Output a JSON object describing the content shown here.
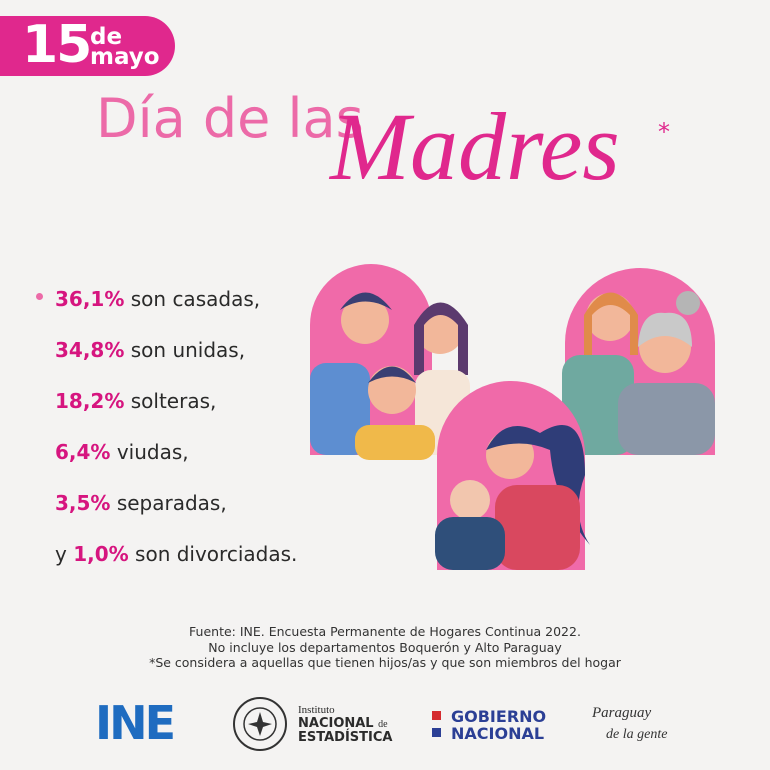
{
  "badge": {
    "day": "15",
    "month_line1": "de",
    "month_line2": "mayo"
  },
  "title": {
    "line1": "Día de las",
    "script": "Madres",
    "asterisk": "*"
  },
  "items": [
    {
      "value": "36,1%",
      "text": "son casadas,"
    },
    {
      "value": "34,8%",
      "text": "son unidas,"
    },
    {
      "value": "18,2%",
      "text": "solteras,"
    },
    {
      "value": "6,4%",
      "text": "viudas,"
    },
    {
      "value": "3,5%",
      "text": "separadas,"
    },
    {
      "prefix": "y",
      "value": "1,0%",
      "text": "son divorciadas."
    }
  ],
  "notes": [
    "Fuente: INE. Encuesta Permanente de Hogares Continua 2022.",
    "No incluye los departamentos Boquerón y Alto Paraguay",
    "*Se considera a aquellas que tienen hijos/as y que son miembros del hogar"
  ],
  "logos": {
    "ine": "INE",
    "instituto": {
      "line1": "Instituto",
      "line2": "NACIONAL",
      "de": "de",
      "line3": "ESTADÍSTICA"
    },
    "gobierno": {
      "line1": "GOBIERNO",
      "line2": "NACIONAL"
    },
    "paraguay": {
      "line1": "Paraguay",
      "line2": "de la gente"
    }
  }
}
